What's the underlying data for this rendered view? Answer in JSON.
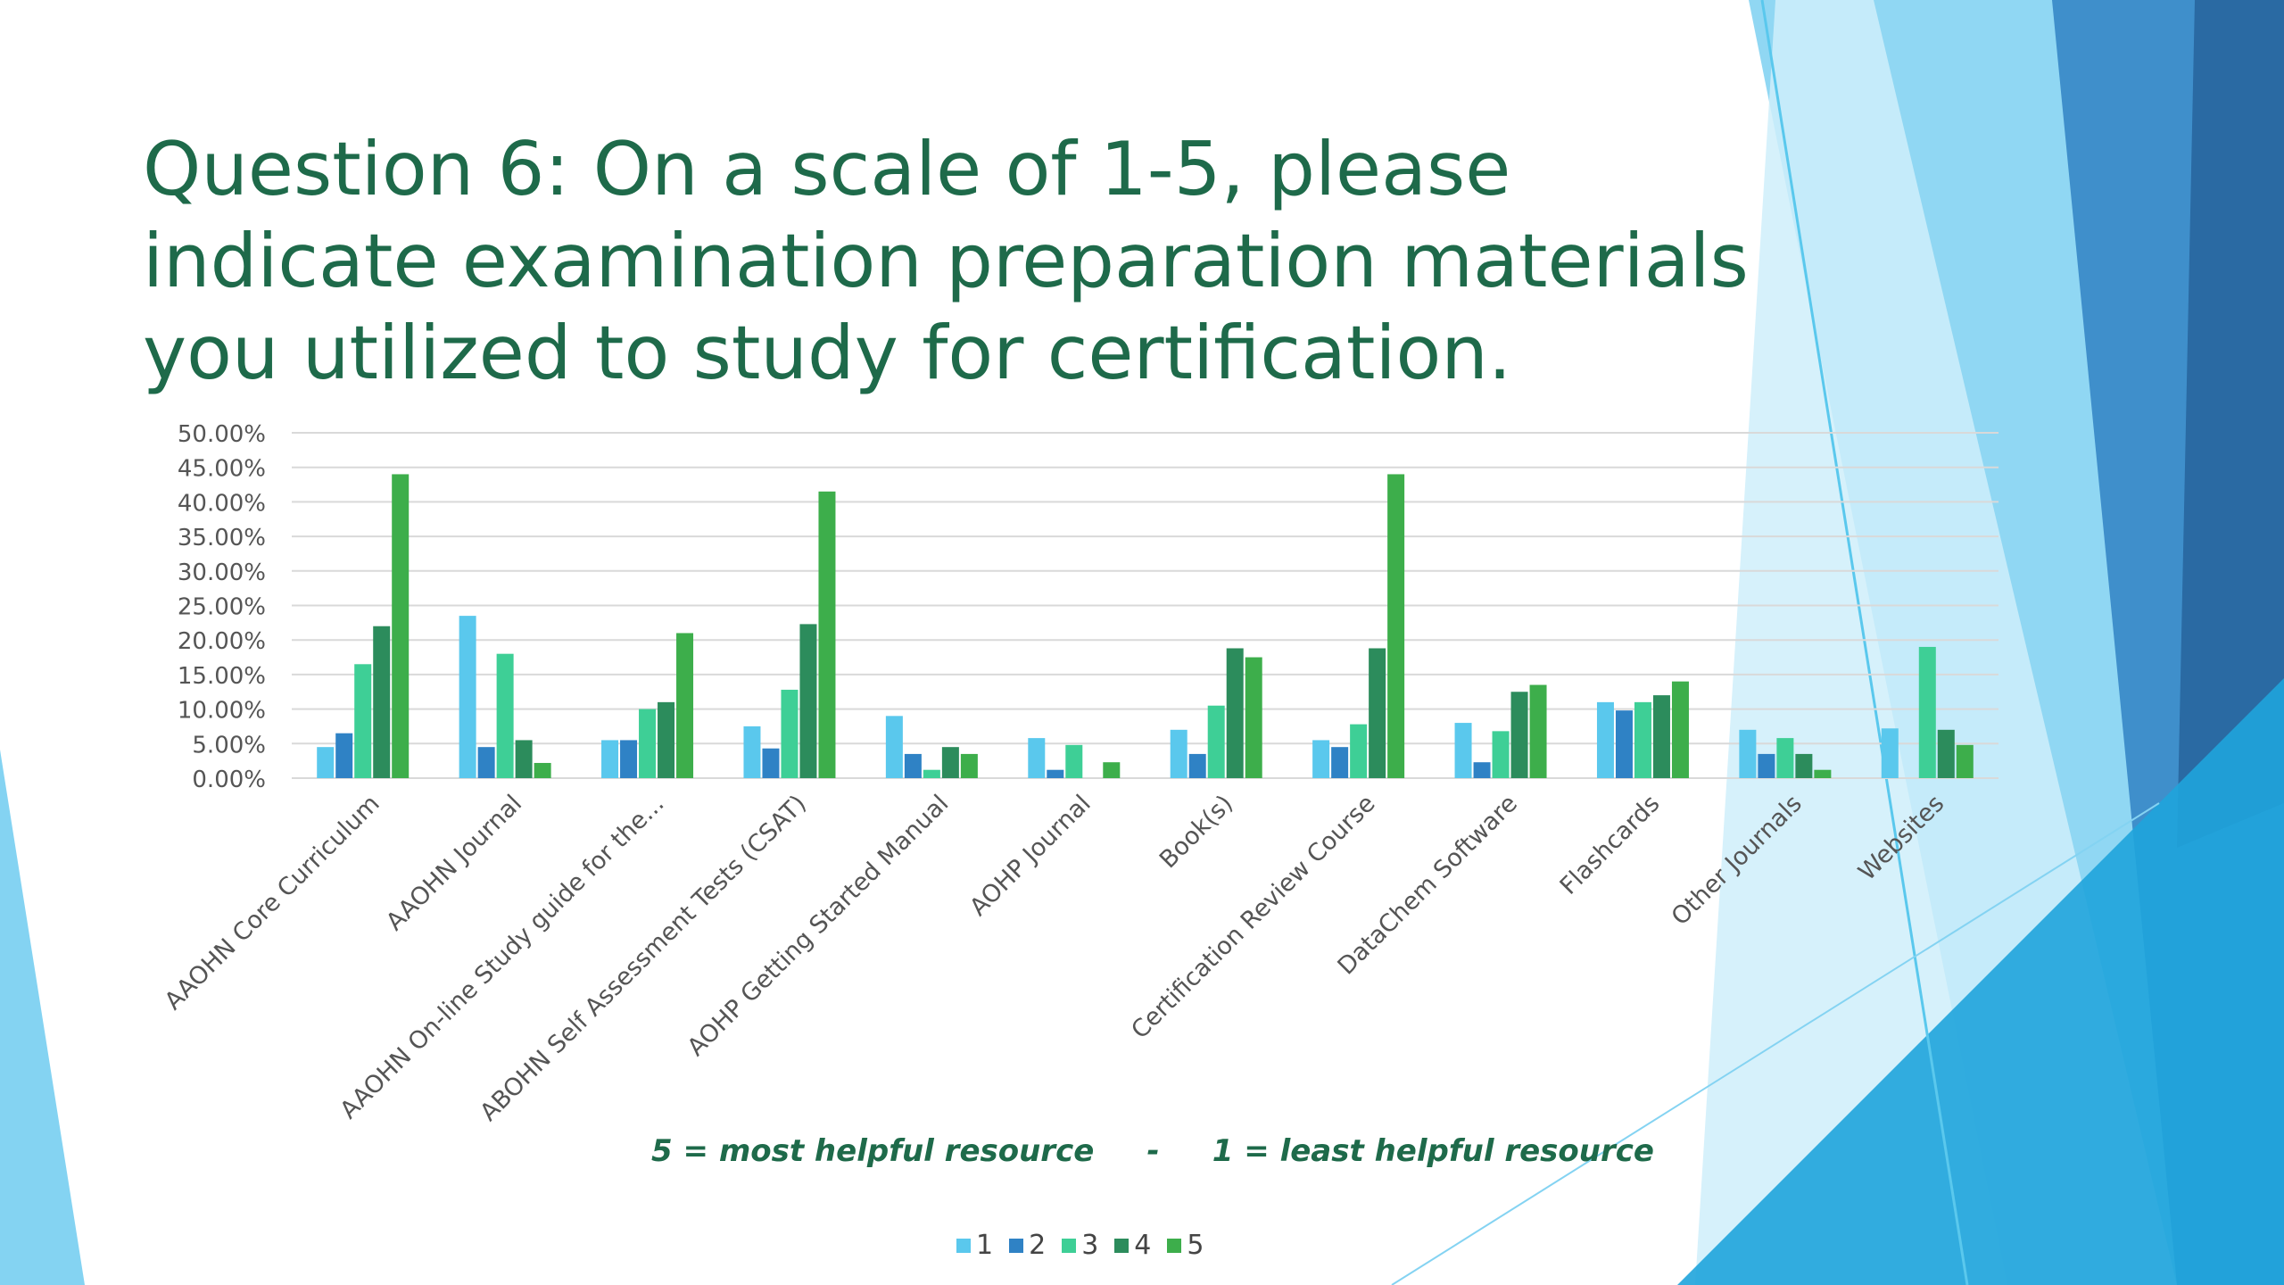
{
  "title": "Question 6: On a scale of 1-5, please indicate examination preparation materials you utilized to study for certification.",
  "scale_note": "5 = most helpful resource     -     1 = least helpful resource",
  "colors": {
    "title": "#1e6a4a",
    "series": [
      "#5ac8ed",
      "#2f82c5",
      "#3ecf96",
      "#2c8c5c",
      "#3dae4b"
    ],
    "grid": "#d9d9d9",
    "axis_text": "#555555"
  },
  "chart_data": {
    "type": "bar",
    "categories": [
      "AAOHN Core Curriculum",
      "AAOHN Journal",
      "AAOHN On-line Study guide for the...",
      "ABOHN Self Assessment Tests (CSAT)",
      "AOHP Getting Started Manual",
      "AOHP Journal",
      "Book(s)",
      "Certification Review Course",
      "DataChem Software",
      "Flashcards",
      "Other Journals",
      "Websites"
    ],
    "series": [
      {
        "name": "1",
        "values": [
          4.5,
          23.5,
          5.5,
          7.5,
          9.0,
          5.8,
          7.0,
          5.5,
          8.0,
          11.0,
          7.0,
          7.2
        ]
      },
      {
        "name": "2",
        "values": [
          6.5,
          4.5,
          5.5,
          4.3,
          3.5,
          1.2,
          3.5,
          4.5,
          2.3,
          9.8,
          3.5,
          0
        ]
      },
      {
        "name": "3",
        "values": [
          16.5,
          18.0,
          10.0,
          12.8,
          1.2,
          4.8,
          10.5,
          7.8,
          6.8,
          11.0,
          5.8,
          19.0
        ]
      },
      {
        "name": "4",
        "values": [
          22.0,
          5.5,
          11.0,
          22.3,
          4.5,
          0,
          18.8,
          18.8,
          12.5,
          12.0,
          3.5,
          7.0
        ]
      },
      {
        "name": "5",
        "values": [
          44.0,
          2.2,
          21.0,
          41.5,
          3.5,
          2.3,
          17.5,
          44.0,
          13.5,
          14.0,
          1.2,
          4.8
        ]
      }
    ],
    "y_ticks": [
      "0.00%",
      "5.00%",
      "10.00%",
      "15.00%",
      "20.00%",
      "25.00%",
      "30.00%",
      "35.00%",
      "40.00%",
      "45.00%",
      "50.00%"
    ],
    "ylim": [
      0,
      50
    ],
    "grid": true,
    "legend": "bottom-center"
  }
}
